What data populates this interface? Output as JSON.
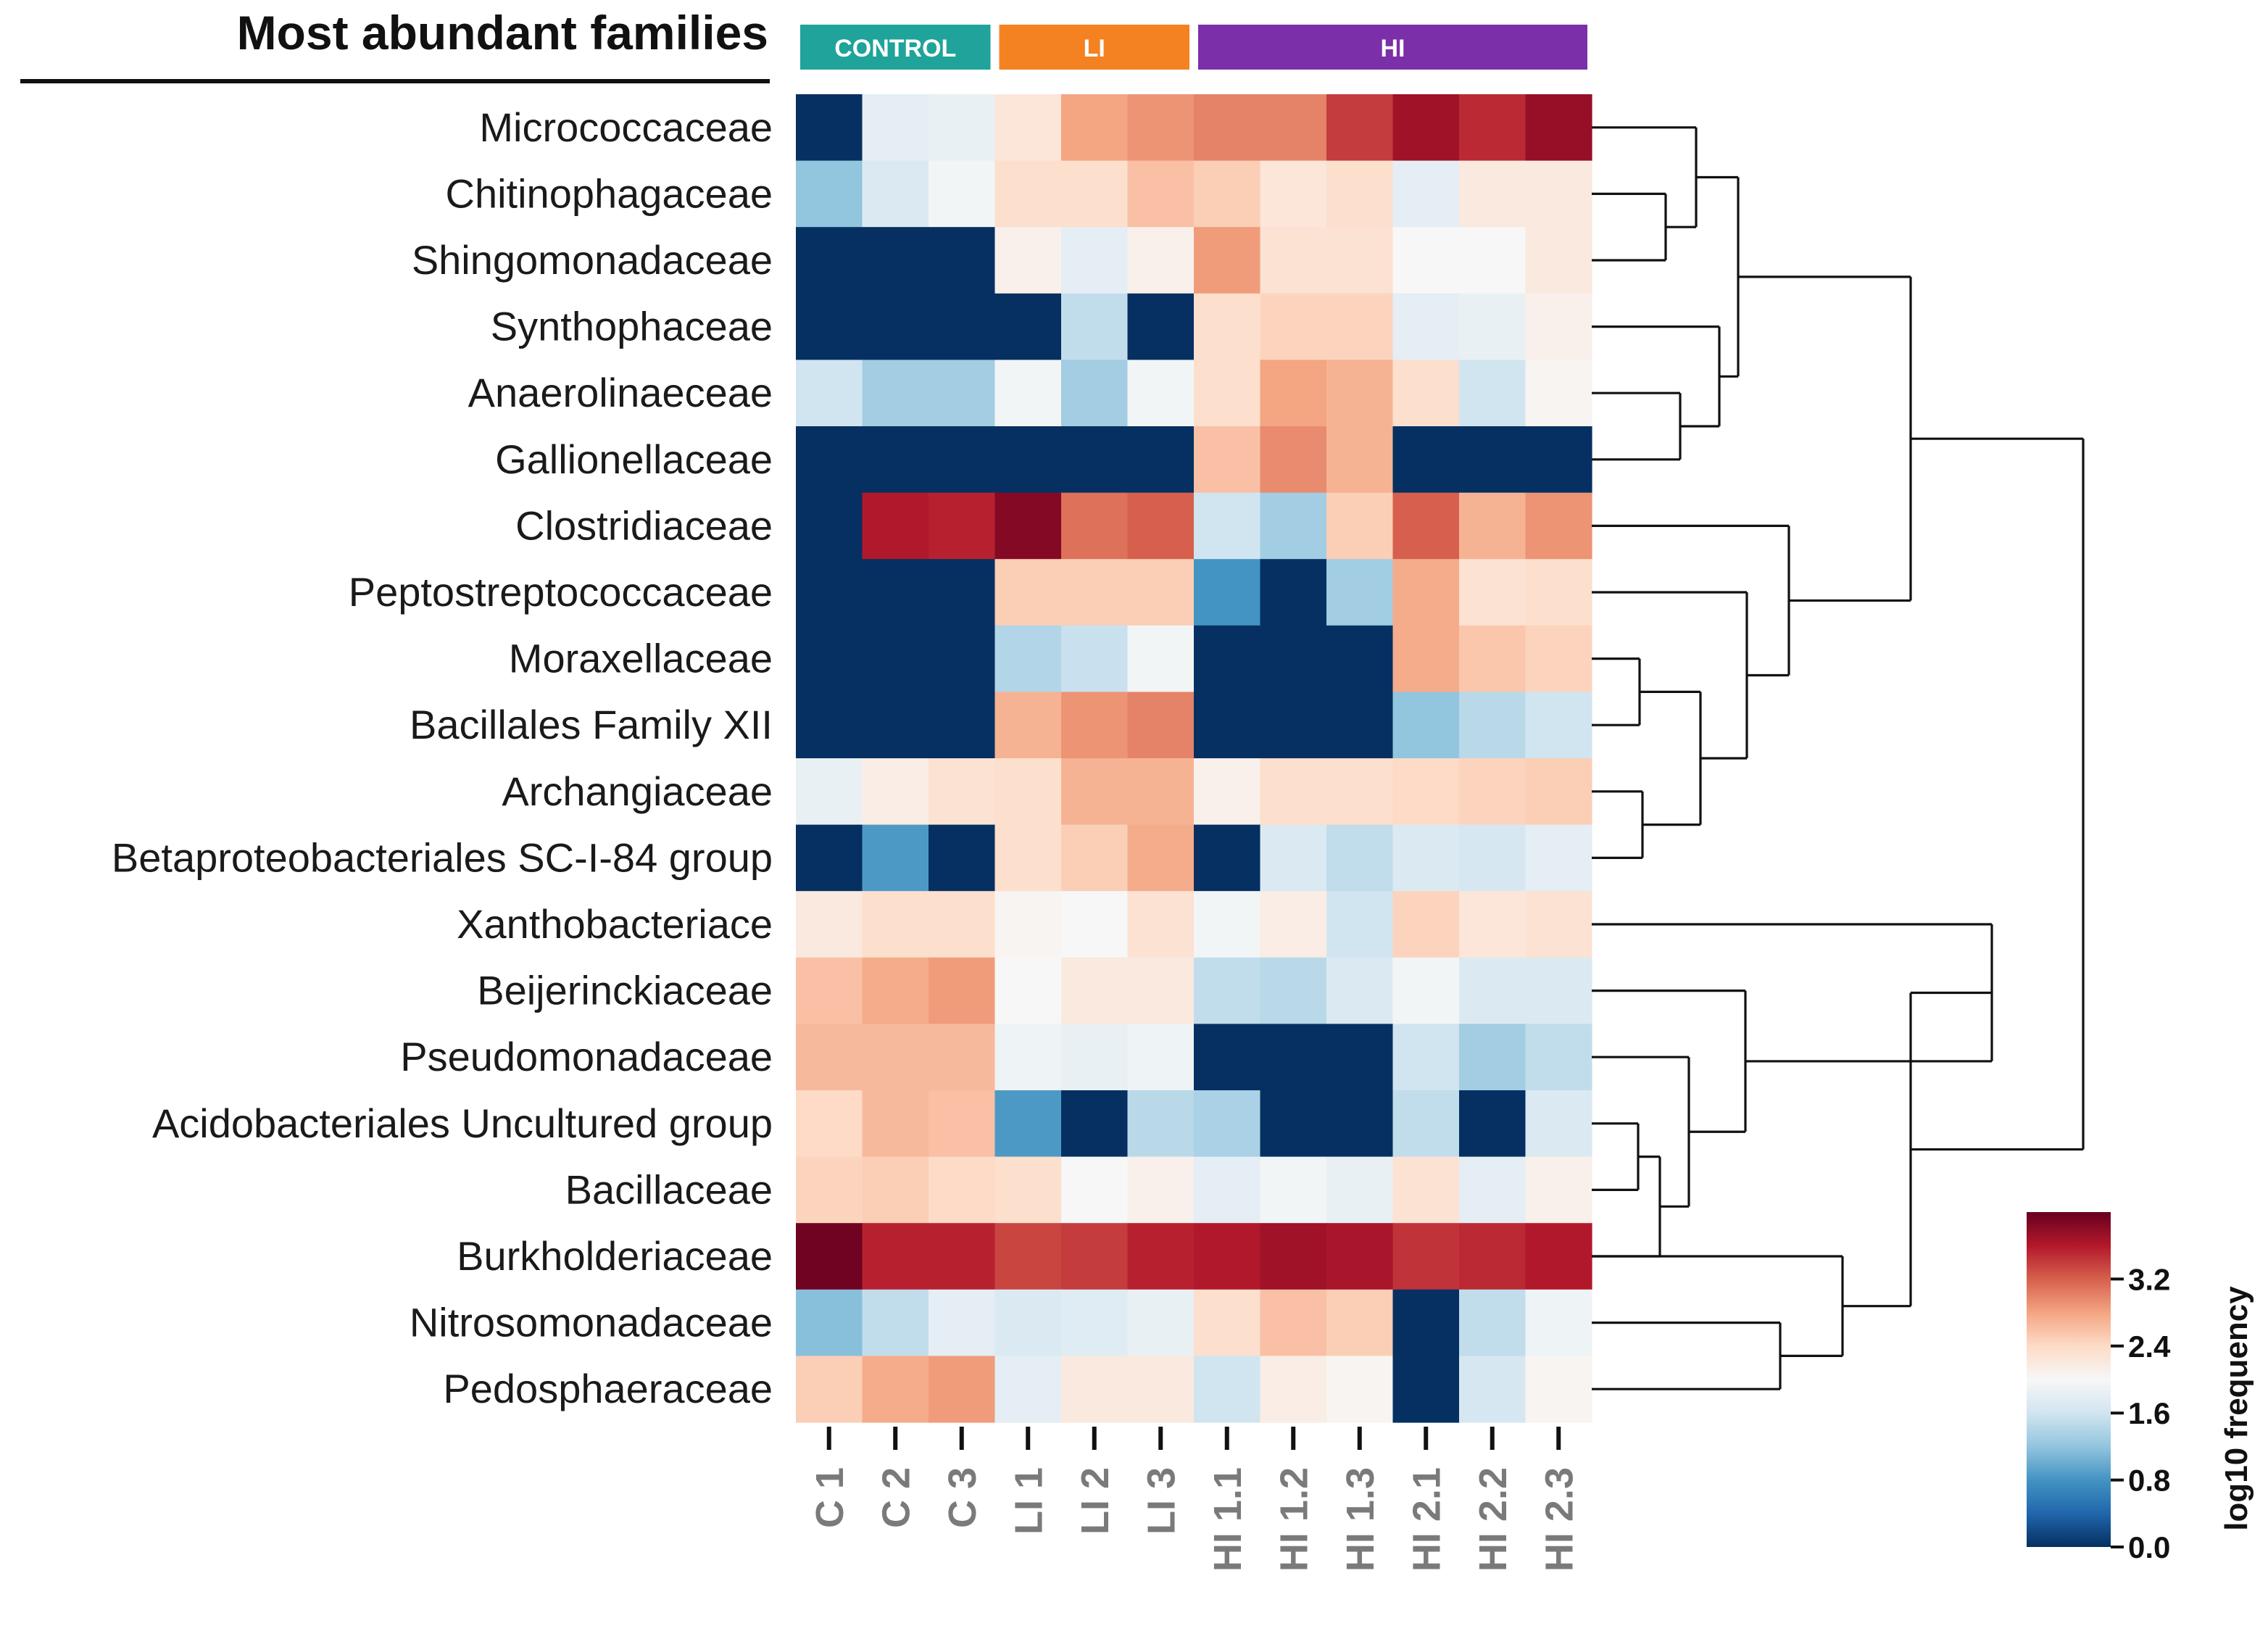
{
  "chart_data": {
    "type": "heatmap",
    "title": "Most abundant families",
    "groups": [
      {
        "label": "CONTROL",
        "color": "#1fa39a",
        "columns": [
          "C 1",
          "C 2",
          "C 3"
        ]
      },
      {
        "label": "LI",
        "color": "#f58220",
        "columns": [
          "LI 1",
          "LI 2",
          "LI 3"
        ]
      },
      {
        "label": "HI",
        "color": "#7b2fa8",
        "columns": [
          "HI 1.1",
          "HI 1.2",
          "HI 1.3",
          "HI 2.1",
          "HI 2.2",
          "HI 2.3"
        ]
      }
    ],
    "columns": [
      "C 1",
      "C 2",
      "C 3",
      "LI 1",
      "LI 2",
      "LI 3",
      "HI 1.1",
      "HI 1.2",
      "HI 1.3",
      "HI 2.1",
      "HI 2.2",
      "HI 2.3"
    ],
    "rows": [
      "Micrococcaceae",
      "Chitinophagaceae",
      "Shingomonadaceae",
      "Synthophaceae",
      "Anaerolinaeceae",
      "Gallionellaceae",
      "Clostridiaceae",
      "Peptostreptococcaceae",
      "Moraxellaceae",
      "Bacillales Family XII",
      "Archangiaceae",
      "Betaproteobacteriales SC-I-84 group",
      "Xanthobacteriace",
      "Beijerinckiaceae",
      "Pseudomonadaceae",
      "Acidobacteriales Uncultured group",
      "Bacillaceae",
      "Burkholderiaceae",
      "Nitrosomonadaceae",
      "Pedosphaeraceae"
    ],
    "values": [
      [
        0.0,
        1.8,
        1.85,
        2.25,
        2.8,
        2.9,
        3.0,
        3.0,
        3.4,
        3.7,
        3.5,
        3.75
      ],
      [
        1.2,
        1.7,
        1.95,
        2.35,
        2.35,
        2.6,
        2.5,
        2.25,
        2.35,
        1.8,
        2.2,
        2.2
      ],
      [
        0.0,
        0.0,
        0.0,
        2.1,
        1.8,
        2.1,
        2.85,
        2.3,
        2.3,
        2.0,
        2.0,
        2.2
      ],
      [
        0.0,
        0.0,
        0.0,
        0.0,
        1.5,
        0.0,
        2.35,
        2.45,
        2.45,
        1.8,
        1.85,
        2.1
      ],
      [
        1.6,
        1.3,
        1.3,
        1.95,
        1.3,
        1.95,
        2.35,
        2.8,
        2.7,
        2.35,
        1.6,
        2.05
      ],
      [
        0.0,
        0.0,
        0.0,
        0.0,
        0.0,
        0.0,
        2.6,
        2.95,
        2.7,
        0.0,
        0.0,
        0.0
      ],
      [
        0.0,
        3.6,
        3.55,
        3.85,
        3.1,
        3.2,
        1.6,
        1.3,
        2.5,
        3.2,
        2.7,
        2.9
      ],
      [
        0.0,
        0.0,
        0.0,
        2.5,
        2.5,
        2.5,
        0.8,
        0.0,
        1.3,
        2.75,
        2.3,
        2.35
      ],
      [
        0.0,
        0.0,
        0.0,
        1.4,
        1.55,
        1.95,
        0.0,
        0.0,
        0.0,
        2.75,
        2.55,
        2.45
      ],
      [
        0.0,
        0.0,
        0.0,
        2.7,
        2.9,
        3.0,
        0.0,
        0.0,
        0.0,
        1.2,
        1.45,
        1.6
      ],
      [
        1.85,
        2.15,
        2.3,
        2.35,
        2.7,
        2.7,
        2.1,
        2.35,
        2.35,
        2.4,
        2.45,
        2.5
      ],
      [
        0.0,
        0.85,
        0.0,
        2.35,
        2.5,
        2.75,
        0.0,
        1.7,
        1.5,
        1.7,
        1.65,
        1.8
      ],
      [
        2.2,
        2.35,
        2.35,
        2.05,
        2.0,
        2.3,
        1.95,
        2.15,
        1.6,
        2.45,
        2.25,
        2.3
      ],
      [
        2.6,
        2.75,
        2.85,
        2.0,
        2.2,
        2.2,
        1.5,
        1.45,
        1.7,
        1.95,
        1.7,
        1.7
      ],
      [
        2.65,
        2.65,
        2.65,
        1.9,
        1.85,
        1.9,
        0.0,
        0.0,
        0.0,
        1.6,
        1.3,
        1.5
      ],
      [
        2.4,
        2.65,
        2.6,
        0.85,
        0.0,
        1.45,
        1.35,
        0.0,
        0.0,
        1.5,
        0.0,
        1.7
      ],
      [
        2.45,
        2.5,
        2.4,
        2.35,
        2.0,
        2.1,
        1.8,
        1.95,
        1.85,
        2.3,
        1.8,
        2.1
      ],
      [
        3.95,
        3.55,
        3.55,
        3.35,
        3.4,
        3.55,
        3.6,
        3.7,
        3.65,
        3.45,
        3.5,
        3.6
      ],
      [
        1.15,
        1.5,
        1.8,
        1.7,
        1.75,
        1.85,
        2.35,
        2.6,
        2.5,
        0.0,
        1.5,
        1.9
      ],
      [
        2.5,
        2.75,
        2.85,
        1.8,
        2.2,
        2.2,
        1.6,
        2.15,
        2.05,
        0.0,
        1.65,
        2.05
      ]
    ],
    "colorbar": {
      "label": "log10 frequency",
      "range": [
        0.0,
        4.0
      ],
      "ticks": [
        "0.0",
        "0.8",
        "1.6",
        "2.4",
        "3.2"
      ],
      "colors": [
        "#053061",
        "#2166ac",
        "#4393c3",
        "#92c5de",
        "#d1e5f0",
        "#f7f7f7",
        "#fddbc7",
        "#f4a582",
        "#d6604d",
        "#b2182b",
        "#67001f"
      ]
    },
    "dendrogram": {
      "orientation": "rows, drawn on right side",
      "leaf_order": [
        "Micrococcaceae",
        "Chitinophagaceae",
        "Shingomonadaceae",
        "Synthophaceae",
        "Anaerolinaeceae",
        "Gallionellaceae",
        "Clostridiaceae",
        "Peptostreptococcaceae",
        "Moraxellaceae",
        "Bacillales Family XII",
        "Archangiaceae",
        "Betaproteobacteriales SC-I-84 group",
        "Xanthobacteriace",
        "Beijerinckiaceae",
        "Pseudomonadaceae",
        "Acidobacteriales Uncultured group",
        "Bacillaceae",
        "Burkholderiaceae",
        "Nitrosomonadaceae",
        "Pedosphaeraceae"
      ]
    }
  }
}
